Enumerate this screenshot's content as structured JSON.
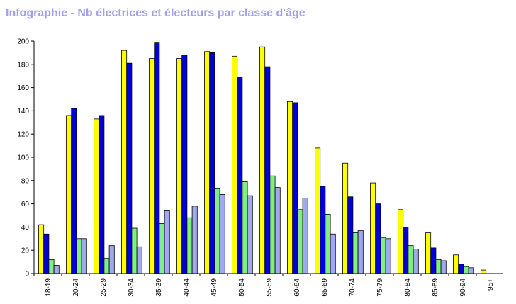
{
  "title": "Infographie - Nb électrices et électeurs par classe d'âge",
  "colors": {
    "background": "#ffffff",
    "title": "#a0a0e8",
    "axis": "#000000"
  },
  "chart_data": {
    "type": "bar",
    "title": "Infographie - Nb électrices et électeurs par classe d'âge",
    "xlabel": "",
    "ylabel": "",
    "ylim": [
      0,
      200
    ],
    "yticks": [
      0,
      20,
      40,
      60,
      80,
      100,
      120,
      140,
      160,
      180,
      200
    ],
    "grid": false,
    "legend": "none",
    "categories": [
      "18-19",
      "20-24",
      "25-29",
      "30-34",
      "35-39",
      "40-44",
      "45-49",
      "50-54",
      "55-59",
      "60-64",
      "65-69",
      "70-74",
      "75-79",
      "80-84",
      "85-89",
      "90-94",
      "95+"
    ],
    "series": [
      {
        "color": "#ffff00",
        "values": [
          42,
          136,
          133,
          192,
          185,
          185,
          191,
          187,
          195,
          148,
          108,
          95,
          78,
          55,
          35,
          16,
          3
        ]
      },
      {
        "color": "#0000dd",
        "values": [
          34,
          142,
          136,
          181,
          199,
          188,
          190,
          169,
          178,
          147,
          75,
          66,
          60,
          40,
          22,
          8,
          0
        ]
      },
      {
        "color": "#80ee80",
        "values": [
          12,
          30,
          13,
          39,
          43,
          48,
          73,
          79,
          84,
          55,
          51,
          35,
          31,
          24,
          12,
          6,
          0
        ]
      },
      {
        "color": "#a0a8f0",
        "values": [
          7,
          30,
          24,
          23,
          54,
          58,
          68,
          67,
          74,
          65,
          34,
          37,
          30,
          21,
          11,
          5,
          0
        ]
      }
    ]
  }
}
